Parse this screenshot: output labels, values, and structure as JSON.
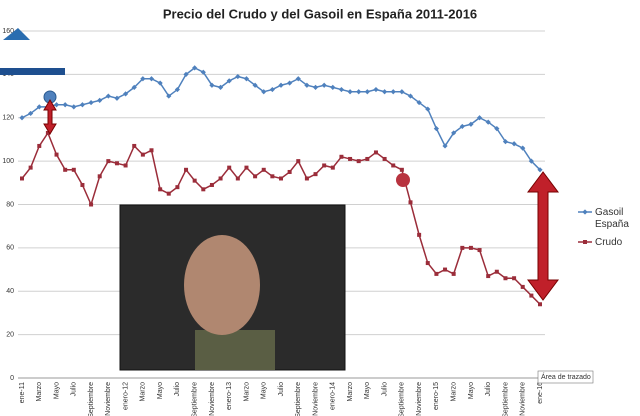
{
  "chart_data": {
    "type": "line",
    "title": "Precio del Crudo y del Gasoil en España 2011-2016",
    "categories": [
      "ene-11",
      null,
      "Marzo",
      null,
      "Mayo",
      null,
      "Julio",
      null,
      "Septiembre",
      null,
      "Noviembre",
      null,
      "enero-12",
      null,
      "Marzo",
      null,
      "Mayo",
      null,
      "Julio",
      null,
      "Septiembre",
      null,
      "Noviembre",
      null,
      "enero-13",
      null,
      "Marzo",
      null,
      "Mayo",
      null,
      "Julio",
      null,
      "Septiembre",
      null,
      "Noviembre",
      null,
      "enero-14",
      null,
      "Marzo",
      null,
      "Mayo",
      null,
      "Julio",
      null,
      "Septiembre",
      null,
      "Noviembre",
      null,
      "enero-15",
      null,
      "Marzo",
      null,
      "Mayo",
      null,
      "Julio",
      null,
      "Septiembre",
      null,
      "Noviembre",
      null,
      "ene-16"
    ],
    "series": [
      {
        "name": "Gasoil España",
        "color": "#4f81bd",
        "marker": "diamond",
        "values": [
          120,
          122,
          125,
          125,
          126,
          126,
          125,
          126,
          127,
          128,
          130,
          129,
          131,
          134,
          138,
          138,
          136,
          130,
          133,
          140,
          143,
          141,
          135,
          134,
          137,
          139,
          138,
          135,
          132,
          133,
          135,
          136,
          138,
          135,
          134,
          135,
          134,
          133,
          132,
          132,
          132,
          133,
          132,
          132,
          132,
          130,
          127,
          124,
          115,
          107,
          113,
          116,
          117,
          120,
          118,
          115,
          109,
          108,
          106,
          100,
          96
        ]
      },
      {
        "name": "Crudo",
        "color": "#9b2d3a",
        "marker": "square",
        "values": [
          92,
          97,
          107,
          113,
          103,
          96,
          96,
          89,
          80,
          93,
          100,
          99,
          98,
          107,
          103,
          105,
          87,
          85,
          88,
          96,
          91,
          87,
          89,
          92,
          97,
          92,
          97,
          93,
          96,
          93,
          92,
          95,
          100,
          92,
          94,
          98,
          97,
          102,
          101,
          100,
          101,
          104,
          101,
          98,
          96,
          81,
          66,
          53,
          48,
          50,
          48,
          60,
          60,
          59,
          47,
          49,
          46,
          46,
          42,
          38,
          34
        ]
      }
    ],
    "ylim": [
      0,
      160
    ],
    "yticks": [
      0,
      20,
      40,
      60,
      80,
      100,
      120,
      140,
      160
    ],
    "grid": true,
    "legend": "right",
    "tooltip": "Área de trazado"
  }
}
